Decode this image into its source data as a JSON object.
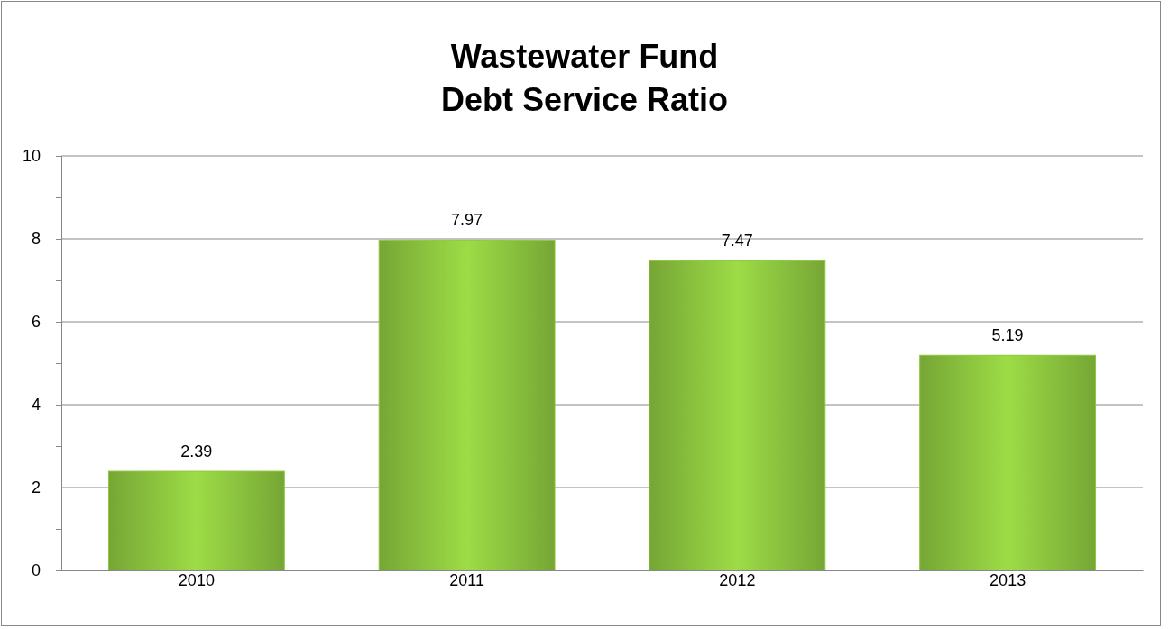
{
  "chart_data": {
    "type": "bar",
    "title": "Wastewater Fund\nDebt Service Ratio",
    "categories": [
      "2010",
      "2011",
      "2012",
      "2013"
    ],
    "values": [
      2.39,
      7.97,
      7.47,
      5.19
    ],
    "color": "#8dc63f",
    "ylim": [
      0,
      10
    ],
    "yticks": [
      0,
      {
        "value": 1,
        "label": null
      },
      2,
      {
        "value": 3,
        "label": null
      },
      4,
      {
        "value": 5,
        "label": null
      },
      6,
      {
        "value": 7,
        "label": null
      },
      8,
      {
        "value": 9,
        "label": null
      },
      10
    ],
    "grid": "y",
    "data_labels": true
  }
}
